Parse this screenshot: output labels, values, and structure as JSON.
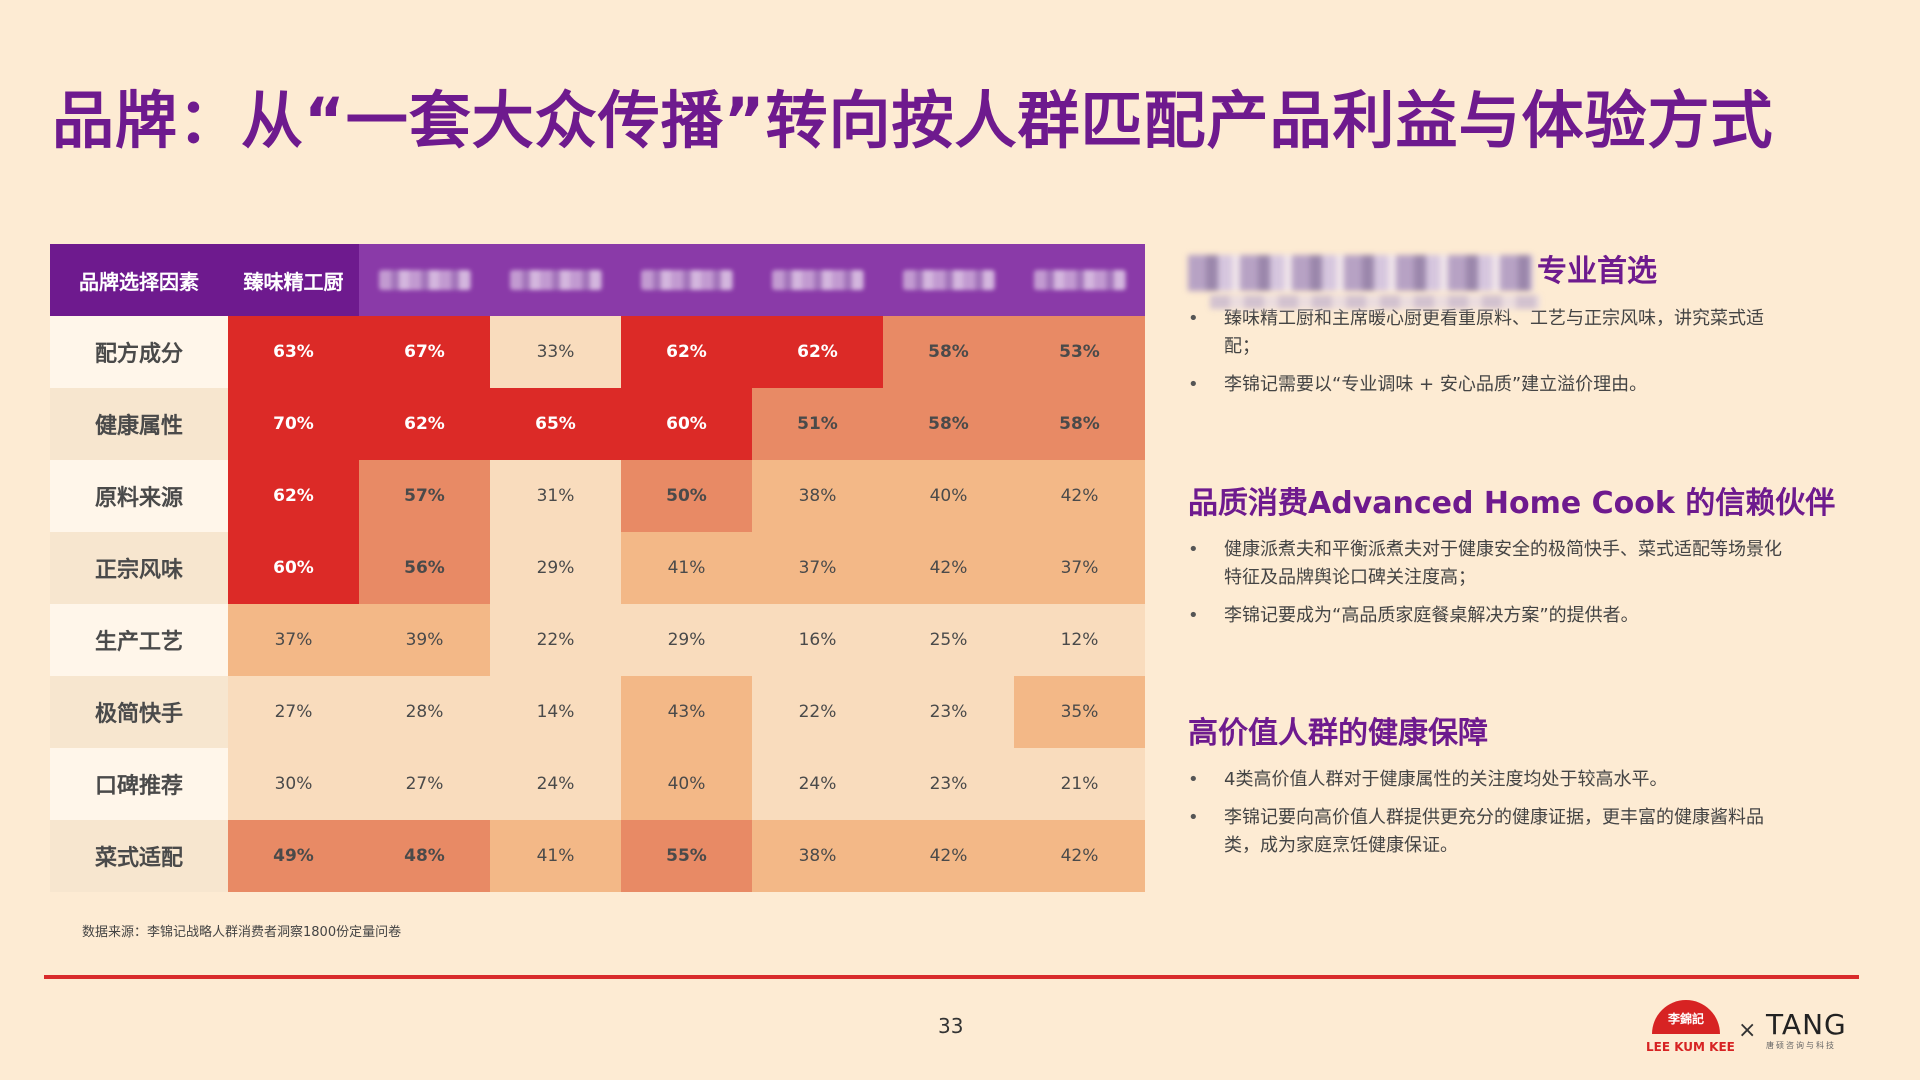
{
  "title": "品牌：从“一套大众传播”转向按人群匹配产品利益与体验方式",
  "table": {
    "corner_header": "品牌选择因素",
    "first_brand_header": "臻味精工厨",
    "rows": [
      {
        "label": "配方成分",
        "values": [
          "63%",
          "67%",
          "33%",
          "62%",
          "62%",
          "58%",
          "53%"
        ]
      },
      {
        "label": "健康属性",
        "values": [
          "70%",
          "62%",
          "65%",
          "60%",
          "51%",
          "58%",
          "58%"
        ]
      },
      {
        "label": "原料来源",
        "values": [
          "62%",
          "57%",
          "31%",
          "50%",
          "38%",
          "40%",
          "42%"
        ]
      },
      {
        "label": "正宗风味",
        "values": [
          "60%",
          "56%",
          "29%",
          "41%",
          "37%",
          "42%",
          "37%"
        ]
      },
      {
        "label": "生产工艺",
        "values": [
          "37%",
          "39%",
          "22%",
          "29%",
          "16%",
          "25%",
          "12%"
        ]
      },
      {
        "label": "极简快手",
        "values": [
          "27%",
          "28%",
          "14%",
          "43%",
          "22%",
          "23%",
          "35%"
        ]
      },
      {
        "label": "口碑推荐",
        "values": [
          "30%",
          "27%",
          "24%",
          "40%",
          "24%",
          "23%",
          "21%"
        ]
      },
      {
        "label": "菜式适配",
        "values": [
          "49%",
          "48%",
          "41%",
          "55%",
          "38%",
          "42%",
          "42%"
        ]
      }
    ],
    "colors": {
      "level4": "#dc2a27",
      "level3": "#e88a65",
      "level2": "#f3b887",
      "level1": "#f9dcbd",
      "header": "#6e1a8e"
    }
  },
  "source_note": "数据来源：李锦记战略人群消费者洞察1800份定量问卷",
  "page_number": "33",
  "sections": [
    {
      "heading_visible": "专业首选",
      "bullets": [
        "臻味精工厨和主席暖心厨更看重原料、工艺与正宗风味，讲究菜式适配；",
        "李锦记需要以“专业调味 + 安心品质”建立溢价理由。"
      ]
    },
    {
      "heading": "品质消费Advanced Home Cook 的信赖伙伴",
      "bullets": [
        "健康派煮夫和平衡派煮夫对于健康安全的极简快手、菜式适配等场景化特征及品牌舆论口碑关注度高；",
        "李锦记要成为“高品质家庭餐桌解决方案”的提供者。"
      ]
    },
    {
      "heading": "高价值人群的健康保障",
      "bullets": [
        "4类高价值人群对于健康属性的关注度均处于较高水平。",
        "李锦记要向高价值人群提供更充分的健康证据，更丰富的健康酱料品类，成为家庭烹饪健康保证。"
      ]
    }
  ],
  "logos": {
    "lkk_chinese": "李錦記",
    "lkk_english": "LEE KUM KEE",
    "x": "×",
    "tang": "TANG",
    "tang_sub": "唐硕咨询与科技"
  }
}
